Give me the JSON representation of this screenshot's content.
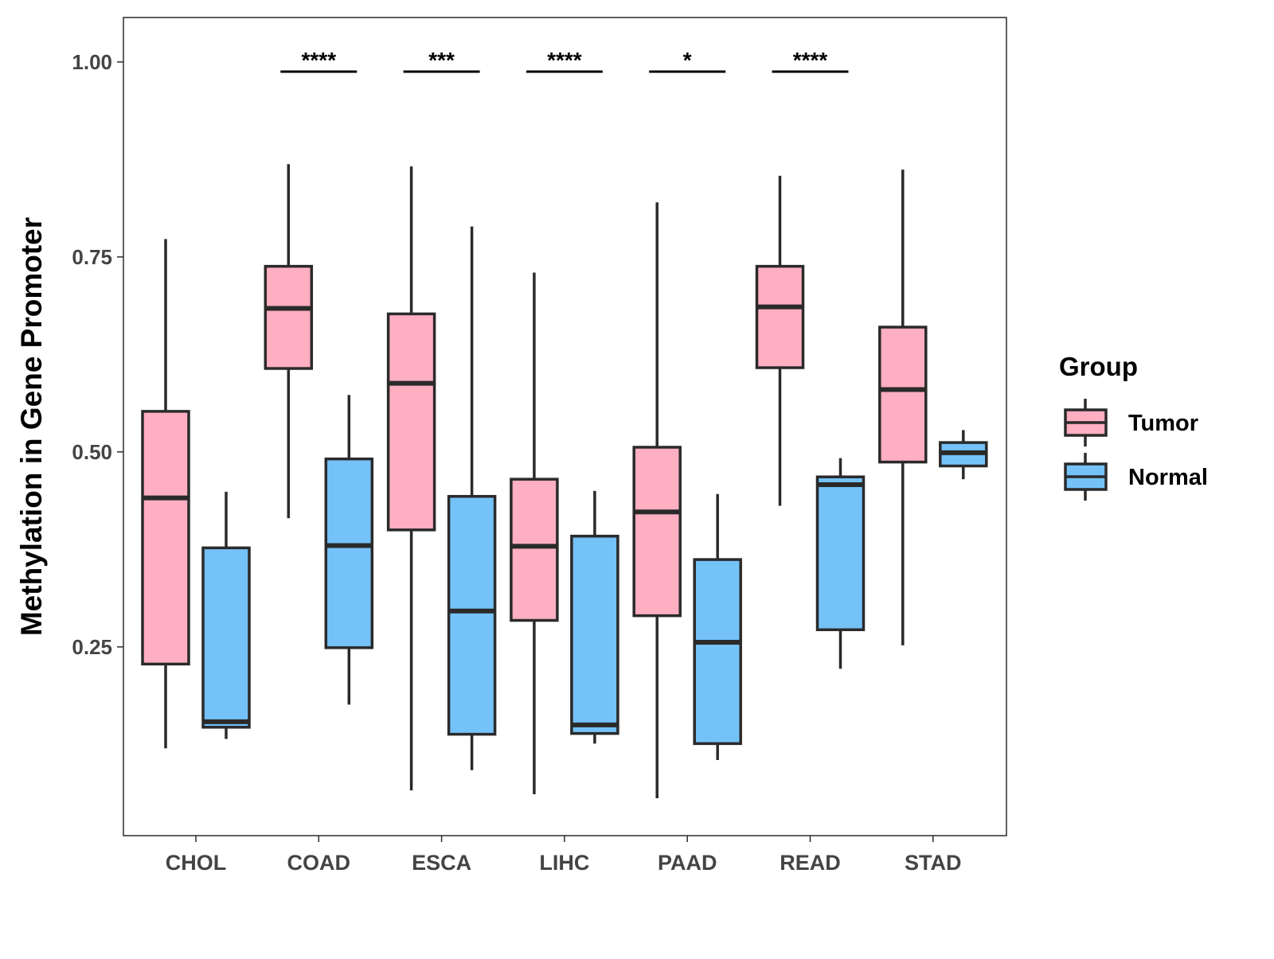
{
  "chart_data": {
    "type": "boxplot",
    "title": "",
    "xlabel": "",
    "ylabel": "Methylation in Gene Promoter",
    "ylim": [
      0.008,
      1.057
    ],
    "yticks": [
      0.25,
      0.5,
      0.75,
      1.0
    ],
    "ytick_labels": [
      "0.25",
      "0.50",
      "0.75",
      "1.00"
    ],
    "grid": false,
    "categories": [
      "CHOL",
      "COAD",
      "ESCA",
      "LIHC",
      "PAAD",
      "READ",
      "STAD"
    ],
    "legend": {
      "title": "Group",
      "placement": "right",
      "entries": [
        "Tumor",
        "Normal"
      ]
    },
    "colors": {
      "Tumor": "#FEAFC1",
      "Normal": "#74C2F8",
      "stroke": "#2a2a2a"
    },
    "series": [
      {
        "name": "Tumor",
        "boxes": [
          {
            "min": 0.12,
            "q1": 0.228,
            "median": 0.441,
            "q3": 0.552,
            "max": 0.773
          },
          {
            "min": 0.415,
            "q1": 0.607,
            "median": 0.684,
            "q3": 0.738,
            "max": 0.869
          },
          {
            "min": 0.066,
            "q1": 0.4,
            "median": 0.588,
            "q3": 0.677,
            "max": 0.866
          },
          {
            "min": 0.061,
            "q1": 0.284,
            "median": 0.379,
            "q3": 0.465,
            "max": 0.73
          },
          {
            "min": 0.056,
            "q1": 0.29,
            "median": 0.423,
            "q3": 0.506,
            "max": 0.82
          },
          {
            "min": 0.431,
            "q1": 0.608,
            "median": 0.686,
            "q3": 0.738,
            "max": 0.854
          },
          {
            "min": 0.252,
            "q1": 0.487,
            "median": 0.58,
            "q3": 0.66,
            "max": 0.862
          }
        ]
      },
      {
        "name": "Normal",
        "boxes": [
          {
            "min": 0.132,
            "q1": 0.147,
            "median": 0.154,
            "q3": 0.377,
            "max": 0.449
          },
          {
            "min": 0.176,
            "q1": 0.249,
            "median": 0.38,
            "q3": 0.491,
            "max": 0.573
          },
          {
            "min": 0.092,
            "q1": 0.138,
            "median": 0.296,
            "q3": 0.443,
            "max": 0.789
          },
          {
            "min": 0.126,
            "q1": 0.139,
            "median": 0.15,
            "q3": 0.392,
            "max": 0.45
          },
          {
            "min": 0.105,
            "q1": 0.126,
            "median": 0.256,
            "q3": 0.362,
            "max": 0.446
          },
          {
            "min": 0.222,
            "q1": 0.272,
            "median": 0.458,
            "q3": 0.468,
            "max": 0.492
          },
          {
            "min": 0.465,
            "q1": 0.482,
            "median": 0.499,
            "q3": 0.512,
            "max": 0.528
          }
        ]
      }
    ],
    "annotations": [
      {
        "category": "COAD",
        "label": "****"
      },
      {
        "category": "ESCA",
        "label": "***"
      },
      {
        "category": "LIHC",
        "label": "****"
      },
      {
        "category": "PAAD",
        "label": "*"
      },
      {
        "category": "READ",
        "label": "****"
      }
    ]
  }
}
